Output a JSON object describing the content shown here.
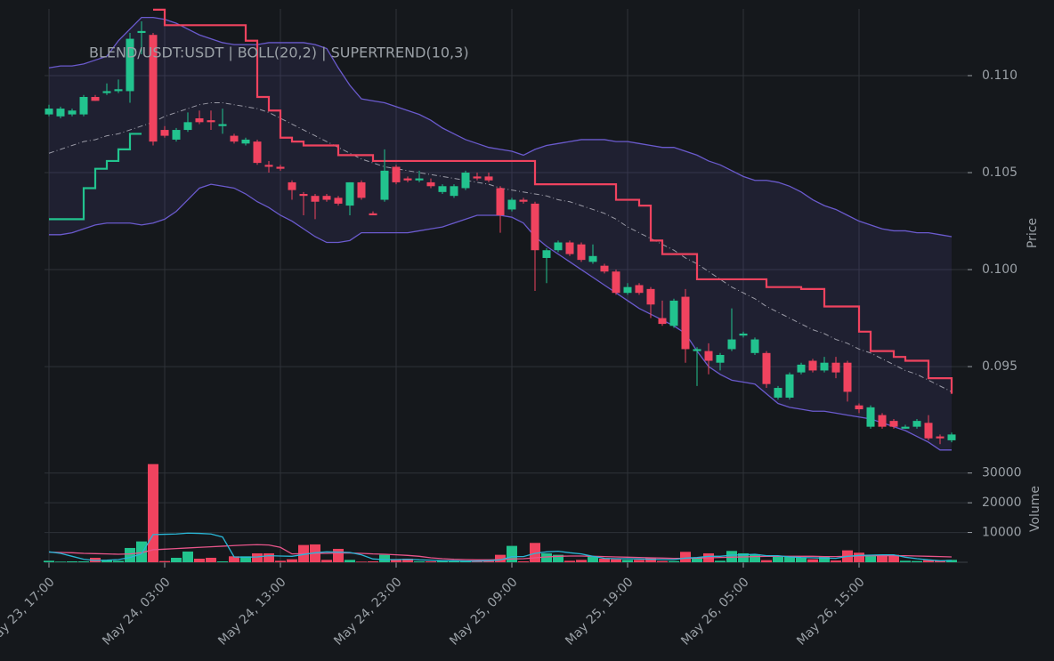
{
  "chart_data": [
    {
      "type": "candlestick",
      "title": "BLEND/USDT:USDT | BOLL(20,2) | SUPERTREND(10,3)",
      "y_label": "Price",
      "x": [
        "May 23, 17:00",
        "May 23, 18:00",
        "May 23, 19:00",
        "May 23, 20:00",
        "May 23, 21:00",
        "May 23, 22:00",
        "May 23, 23:00",
        "May 24, 00:00",
        "May 24, 01:00",
        "May 24, 02:00",
        "May 24, 03:00",
        "May 24, 04:00",
        "May 24, 05:00",
        "May 24, 06:00",
        "May 24, 07:00",
        "May 24, 08:00",
        "May 24, 09:00",
        "May 24, 10:00",
        "May 24, 11:00",
        "May 24, 12:00",
        "May 24, 13:00",
        "May 24, 14:00",
        "May 24, 15:00",
        "May 24, 16:00",
        "May 24, 17:00",
        "May 24, 18:00",
        "May 24, 19:00",
        "May 24, 20:00",
        "May 24, 21:00",
        "May 24, 22:00",
        "May 24, 23:00",
        "May 25, 00:00",
        "May 25, 01:00",
        "May 25, 02:00",
        "May 25, 03:00",
        "May 25, 04:00",
        "May 25, 05:00",
        "May 25, 06:00",
        "May 25, 07:00",
        "May 25, 08:00",
        "May 25, 09:00",
        "May 25, 10:00",
        "May 25, 11:00",
        "May 25, 12:00",
        "May 25, 13:00",
        "May 25, 14:00",
        "May 25, 15:00",
        "May 25, 16:00",
        "May 25, 17:00",
        "May 25, 18:00",
        "May 25, 19:00",
        "May 25, 20:00",
        "May 25, 21:00",
        "May 25, 22:00",
        "May 25, 23:00",
        "May 26, 00:00",
        "May 26, 01:00",
        "May 26, 02:00",
        "May 26, 03:00",
        "May 26, 04:00",
        "May 26, 05:00",
        "May 26, 06:00",
        "May 26, 07:00",
        "May 26, 08:00",
        "May 26, 09:00",
        "May 26, 10:00",
        "May 26, 11:00",
        "May 26, 12:00",
        "May 26, 13:00",
        "May 26, 14:00",
        "May 26, 15:00",
        "May 26, 16:00",
        "May 26, 17:00",
        "May 26, 18:00",
        "May 26, 19:00",
        "May 26, 20:00",
        "May 26, 21:00",
        "May 26, 22:00",
        "May 26, 23:00"
      ],
      "open": [
        0.108,
        0.1079,
        0.108,
        0.108,
        0.1089,
        0.1091,
        0.1092,
        0.1092,
        0.1122,
        0.1121,
        0.1072,
        0.1067,
        0.1072,
        0.1078,
        0.1077,
        0.1074,
        0.1069,
        0.1065,
        0.1066,
        0.1054,
        0.1053,
        0.1045,
        0.1039,
        0.1038,
        0.1038,
        0.1037,
        0.1033,
        0.1045,
        0.1029,
        0.1036,
        0.1053,
        0.1047,
        0.1046,
        0.1045,
        0.104,
        0.1038,
        0.1042,
        0.1048,
        0.1048,
        0.1042,
        0.1031,
        0.1036,
        0.1034,
        0.1006,
        0.101,
        0.1014,
        0.1013,
        0.1004,
        0.1002,
        0.0999,
        0.0988,
        0.0992,
        0.099,
        0.0975,
        0.0971,
        0.0986,
        0.0958,
        0.0958,
        0.0952,
        0.0959,
        0.0966,
        0.0957,
        0.0957,
        0.0934,
        0.0934,
        0.0947,
        0.0953,
        0.0948,
        0.0952,
        0.0952,
        0.093,
        0.0919,
        0.0925,
        0.0922,
        0.0918,
        0.0919,
        0.0921,
        0.0914,
        0.0912
      ],
      "high": [
        0.1085,
        0.1084,
        0.1083,
        0.109,
        0.109,
        0.1096,
        0.1098,
        0.1122,
        0.1128,
        0.1122,
        0.1074,
        0.1073,
        0.1081,
        0.1082,
        0.1082,
        0.1083,
        0.107,
        0.1068,
        0.1067,
        0.1056,
        0.1054,
        0.1046,
        0.104,
        0.1039,
        0.1039,
        0.1038,
        0.1045,
        0.1046,
        0.103,
        0.1062,
        0.1054,
        0.1048,
        0.1051,
        0.1047,
        0.1044,
        0.1044,
        0.1051,
        0.105,
        0.105,
        0.1043,
        0.1037,
        0.1037,
        0.1035,
        0.1011,
        0.1015,
        0.1015,
        0.1014,
        0.1013,
        0.1003,
        0.1,
        0.0993,
        0.0993,
        0.0991,
        0.0984,
        0.0985,
        0.099,
        0.096,
        0.0962,
        0.0957,
        0.098,
        0.0968,
        0.0965,
        0.0958,
        0.094,
        0.0947,
        0.0952,
        0.0954,
        0.0955,
        0.0955,
        0.0953,
        0.0931,
        0.093,
        0.0926,
        0.0923,
        0.092,
        0.0923,
        0.0925,
        0.0915,
        0.0916
      ],
      "low": [
        0.1079,
        0.1078,
        0.1079,
        0.1079,
        0.1087,
        0.109,
        0.1091,
        0.1086,
        0.1111,
        0.1064,
        0.1068,
        0.1066,
        0.1071,
        0.1075,
        0.1072,
        0.107,
        0.1065,
        0.1064,
        0.1054,
        0.105,
        0.1051,
        0.1036,
        0.1028,
        0.1026,
        0.1035,
        0.1033,
        0.1028,
        0.1036,
        0.1028,
        0.1035,
        0.1044,
        0.1045,
        0.1045,
        0.1042,
        0.1039,
        0.1037,
        0.1041,
        0.1046,
        0.1045,
        0.1019,
        0.103,
        0.1034,
        0.0989,
        0.0993,
        0.1009,
        0.1007,
        0.1004,
        0.1003,
        0.0998,
        0.0987,
        0.0987,
        0.0987,
        0.0975,
        0.0971,
        0.097,
        0.0952,
        0.094,
        0.0946,
        0.0948,
        0.0958,
        0.0965,
        0.0956,
        0.0939,
        0.0933,
        0.0933,
        0.0946,
        0.0947,
        0.0947,
        0.0944,
        0.0932,
        0.0926,
        0.0918,
        0.0918,
        0.0918,
        0.0918,
        0.0918,
        0.0912,
        0.091,
        0.0911
      ],
      "close": [
        0.1083,
        0.1083,
        0.1082,
        0.1089,
        0.1087,
        0.1092,
        0.1093,
        0.1119,
        0.1123,
        0.1066,
        0.1069,
        0.1072,
        0.1076,
        0.1076,
        0.1076,
        0.1075,
        0.1066,
        0.1067,
        0.1055,
        0.1053,
        0.1052,
        0.1041,
        0.1038,
        0.1035,
        0.1036,
        0.1034,
        0.1045,
        0.1037,
        0.1028,
        0.1051,
        0.1045,
        0.1046,
        0.1047,
        0.1043,
        0.1043,
        0.1043,
        0.105,
        0.1047,
        0.1046,
        0.1028,
        0.1036,
        0.1035,
        0.101,
        0.101,
        0.1014,
        0.1008,
        0.1005,
        0.1007,
        0.0999,
        0.0988,
        0.0991,
        0.0988,
        0.0982,
        0.0972,
        0.0984,
        0.0959,
        0.0959,
        0.0953,
        0.0956,
        0.0964,
        0.0967,
        0.0964,
        0.0941,
        0.0939,
        0.0946,
        0.0951,
        0.0948,
        0.0952,
        0.0947,
        0.0937,
        0.0928,
        0.0929,
        0.0919,
        0.0919,
        0.0919,
        0.0922,
        0.0913,
        0.0913,
        0.0915
      ],
      "up_color": "#22c38e",
      "down_color": "#f0435f",
      "ylim": [
        0.09005,
        0.11344
      ],
      "yticks": [
        {
          "value": 0.095,
          "label": "0.095"
        },
        {
          "value": 0.1,
          "label": "0.100"
        },
        {
          "value": 0.105,
          "label": "0.105"
        },
        {
          "value": 0.11,
          "label": "0.110"
        }
      ],
      "xticks": [
        "May 23, 17:00",
        "May 24, 03:00",
        "May 24, 13:00",
        "May 24, 23:00",
        "May 25, 09:00",
        "May 25, 19:00",
        "May 26, 05:00",
        "May 26, 15:00"
      ],
      "grid": true,
      "bands": {
        "color": "#6a5acd",
        "middle_color": "#9a9aa6",
        "fill": "#6a5acd",
        "upper": [
          0.1104,
          0.1105,
          0.1105,
          0.1106,
          0.1108,
          0.111,
          0.1118,
          0.1124,
          0.113,
          0.113,
          0.1129,
          0.1127,
          0.1124,
          0.1121,
          0.1119,
          0.1117,
          0.1116,
          0.1116,
          0.1116,
          0.1117,
          0.1117,
          0.1117,
          0.1117,
          0.1116,
          0.1114,
          0.1104,
          0.1095,
          0.1088,
          0.1087,
          0.1086,
          0.1084,
          0.1082,
          0.108,
          0.1077,
          0.1073,
          0.107,
          0.1067,
          0.1065,
          0.1063,
          0.1062,
          0.1061,
          0.1059,
          0.1062,
          0.1064,
          0.1065,
          0.1066,
          0.1067,
          0.1067,
          0.1067,
          0.1066,
          0.1066,
          0.1065,
          0.1064,
          0.1063,
          0.1063,
          0.1061,
          0.1059,
          0.1056,
          0.1054,
          0.1051,
          0.1048,
          0.1046,
          0.1046,
          0.1045,
          0.1043,
          0.104,
          0.1036,
          0.1033,
          0.1031,
          0.1028,
          0.1025,
          0.1023,
          0.1021,
          0.102,
          0.102,
          0.1019,
          0.1019,
          0.1018,
          0.1017
        ],
        "middle": [
          0.106,
          0.1062,
          0.1064,
          0.1066,
          0.1067,
          0.1069,
          0.107,
          0.1072,
          0.1074,
          0.1076,
          0.1079,
          0.1081,
          0.1083,
          0.1085,
          0.1086,
          0.1086,
          0.1085,
          0.1084,
          0.1083,
          0.1081,
          0.1078,
          0.1075,
          0.1072,
          0.1069,
          0.1066,
          0.1063,
          0.106,
          0.1057,
          0.1055,
          0.1053,
          0.1052,
          0.1051,
          0.105,
          0.1049,
          0.1048,
          0.1047,
          0.1046,
          0.1045,
          0.1044,
          0.1042,
          0.1041,
          0.104,
          0.1039,
          0.1038,
          0.1036,
          0.1035,
          0.1033,
          0.1031,
          0.1029,
          0.1026,
          0.1022,
          0.1019,
          0.1016,
          0.1013,
          0.101,
          0.1006,
          0.1003,
          0.0999,
          0.0995,
          0.0991,
          0.0988,
          0.0985,
          0.0981,
          0.0978,
          0.0975,
          0.0972,
          0.0969,
          0.0967,
          0.0964,
          0.0962,
          0.0959,
          0.0957,
          0.0954,
          0.0951,
          0.0948,
          0.0946,
          0.0943,
          0.094,
          0.0937
        ],
        "lower": [
          0.1018,
          0.1018,
          0.1019,
          0.1021,
          0.1023,
          0.1024,
          0.1024,
          0.1024,
          0.1023,
          0.1024,
          0.1026,
          0.103,
          0.1036,
          0.1042,
          0.1044,
          0.1043,
          0.1042,
          0.1039,
          0.1035,
          0.1032,
          0.1028,
          0.1025,
          0.1021,
          0.1017,
          0.1014,
          0.1014,
          0.1015,
          0.1019,
          0.1019,
          0.1019,
          0.1019,
          0.1019,
          0.102,
          0.1021,
          0.1022,
          0.1024,
          0.1026,
          0.1028,
          0.1028,
          0.1028,
          0.1027,
          0.1024,
          0.1017,
          0.1012,
          0.1008,
          0.1004,
          0.1,
          0.0996,
          0.0992,
          0.0988,
          0.0984,
          0.098,
          0.0977,
          0.0974,
          0.0971,
          0.0967,
          0.0958,
          0.095,
          0.0946,
          0.0943,
          0.0942,
          0.0941,
          0.0936,
          0.0931,
          0.0929,
          0.0928,
          0.0927,
          0.0927,
          0.0926,
          0.0925,
          0.0924,
          0.0923,
          0.0921,
          0.0919,
          0.0917,
          0.0914,
          0.0911,
          0.0907,
          0.0907
        ]
      },
      "supertrend": {
        "up_color": "#22c38e",
        "down_color": "#f0435f",
        "up": [
          0.1026,
          0.1026,
          0.1026,
          0.1042,
          0.1052,
          0.1056,
          0.1062,
          0.107,
          0.107,
          null,
          null,
          null,
          null,
          null,
          null,
          null,
          null,
          null,
          null,
          null,
          null,
          null,
          null,
          null,
          null,
          null,
          null,
          null,
          null,
          null,
          null,
          null,
          null,
          null,
          null,
          null,
          null,
          null,
          null,
          null,
          null,
          null,
          null,
          null,
          null,
          null,
          null,
          null,
          null,
          null,
          null,
          null,
          null,
          null,
          null,
          null,
          null,
          null,
          null,
          null,
          null,
          null,
          null,
          null,
          null,
          null,
          null,
          null,
          null,
          null,
          null,
          null,
          null,
          null,
          null,
          null,
          null,
          null,
          null
        ],
        "down": [
          null,
          null,
          null,
          null,
          null,
          null,
          null,
          null,
          null,
          0.1134,
          0.1126,
          0.1126,
          0.1126,
          0.1126,
          0.1126,
          0.1126,
          0.1126,
          0.1118,
          0.1089,
          0.1082,
          0.1068,
          0.1066,
          0.1064,
          0.1064,
          0.1064,
          0.1059,
          0.1059,
          0.1059,
          0.1056,
          0.1056,
          0.1056,
          0.1056,
          0.1056,
          0.1056,
          0.1056,
          0.1056,
          0.1056,
          0.1056,
          0.1056,
          0.1056,
          0.1056,
          0.1056,
          0.1044,
          0.1044,
          0.1044,
          0.1044,
          0.1044,
          0.1044,
          0.1044,
          0.1036,
          0.1036,
          0.1033,
          0.1015,
          0.1008,
          0.1008,
          0.1008,
          0.0995,
          0.0995,
          0.0995,
          0.0995,
          0.0995,
          0.0995,
          0.0991,
          0.0991,
          0.0991,
          0.099,
          0.099,
          0.0981,
          0.0981,
          0.0981,
          0.0968,
          0.0958,
          0.0958,
          0.0955,
          0.0953,
          0.0953,
          0.0944,
          0.0944,
          0.0936
        ]
      }
    },
    {
      "type": "bar",
      "y_label": "Volume",
      "values": [
        500,
        200,
        300,
        300,
        1500,
        600,
        500,
        4800,
        7000,
        33000,
        400,
        1500,
        3600,
        1200,
        1500,
        300,
        2000,
        2000,
        3000,
        3000,
        500,
        1000,
        5800,
        6000,
        800,
        4500,
        800,
        200,
        300,
        2500,
        800,
        1200,
        300,
        300,
        500,
        500,
        500,
        500,
        600,
        2500,
        5500,
        300,
        6500,
        3000,
        2500,
        500,
        800,
        2000,
        1200,
        1000,
        800,
        800,
        1500,
        400,
        400,
        3500,
        1500,
        3000,
        500,
        3800,
        3000,
        2700,
        700,
        2000,
        2000,
        1500,
        1000,
        2000,
        600,
        4000,
        3200,
        2500,
        2500,
        2500,
        500,
        400,
        700,
        500,
        800
      ],
      "ylim": [
        0,
        33500
      ],
      "yticks": [
        10000,
        20000,
        30000
      ],
      "grid": true,
      "lines": [
        {
          "color": "#e8558a",
          "values": [
            3400,
            3300,
            3200,
            3000,
            2900,
            2800,
            2700,
            2800,
            3200,
            4200,
            4400,
            4600,
            4800,
            5000,
            5200,
            5400,
            5600,
            5800,
            5900,
            5800,
            5000,
            2800,
            2900,
            3000,
            3000,
            3100,
            3100,
            3000,
            2800,
            2700,
            2500,
            2300,
            2000,
            1500,
            1200,
            1000,
            900,
            800,
            800,
            900,
            1100,
            1200,
            1500,
            1800,
            2000,
            2100,
            2100,
            2000,
            1900,
            1800,
            1700,
            1600,
            1500,
            1400,
            1300,
            1300,
            1400,
            1500,
            1600,
            1700,
            1800,
            1900,
            2000,
            2000,
            2000,
            2000,
            2000,
            1900,
            1900,
            2000,
            2100,
            2200,
            2200,
            2200,
            2200,
            2100,
            2000,
            1900,
            1800
          ]
        },
        {
          "color": "#29b6d6",
          "values": [
            3500,
            3000,
            2000,
            1000,
            600,
            700,
            900,
            1600,
            2800,
            9300,
            9400,
            9500,
            9800,
            9700,
            9500,
            8500,
            1800,
            1700,
            1800,
            2200,
            2100,
            2000,
            2600,
            3200,
            3500,
            3400,
            3300,
            2500,
            1100,
            900,
            900,
            1000,
            800,
            700,
            500,
            500,
            400,
            400,
            500,
            800,
            1900,
            1900,
            3000,
            3500,
            3700,
            3200,
            2800,
            2000,
            1300,
            1200,
            1200,
            1100,
            1000,
            900,
            900,
            1400,
            1600,
            2000,
            2000,
            2400,
            2500,
            2700,
            2200,
            2200,
            1800,
            1600,
            1500,
            1400,
            1300,
            2000,
            2300,
            2400,
            2500,
            2500,
            1700,
            1200,
            800,
            500,
            600
          ]
        }
      ]
    }
  ]
}
